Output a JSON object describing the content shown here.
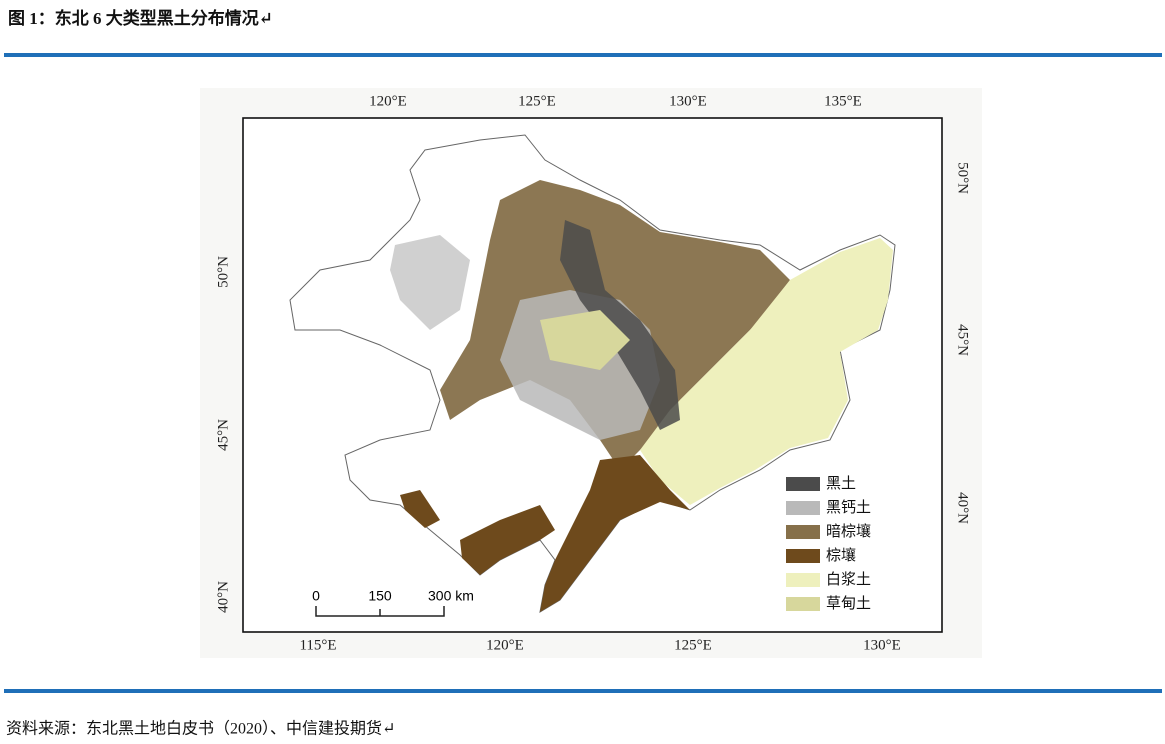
{
  "header": {
    "title": "图 1：东北 6 大类型黑土分布情况↵"
  },
  "map": {
    "top_axis": [
      "120°E",
      "125°E",
      "130°E",
      "135°E"
    ],
    "bottom_axis": [
      "115°E",
      "120°E",
      "125°E",
      "130°E"
    ],
    "left_axis": [
      "50°N",
      "45°N",
      "40°N"
    ],
    "right_axis": [
      "50°N",
      "45°N",
      "40°N"
    ],
    "legend": [
      {
        "label": "黑土",
        "color": "#4b4b4b"
      },
      {
        "label": "黑钙土",
        "color": "#b9b9b9"
      },
      {
        "label": "暗棕壤",
        "color": "#86704a"
      },
      {
        "label": "棕壤",
        "color": "#6e4a1c"
      },
      {
        "label": "白浆土",
        "color": "#eef0bd"
      },
      {
        "label": "草甸土",
        "color": "#d7d79c"
      }
    ],
    "scale_bar": [
      "0",
      "150",
      "300 km"
    ]
  },
  "footer": {
    "source": "资料来源：东北黑土地白皮书（2020）、中信建投期货↵"
  }
}
